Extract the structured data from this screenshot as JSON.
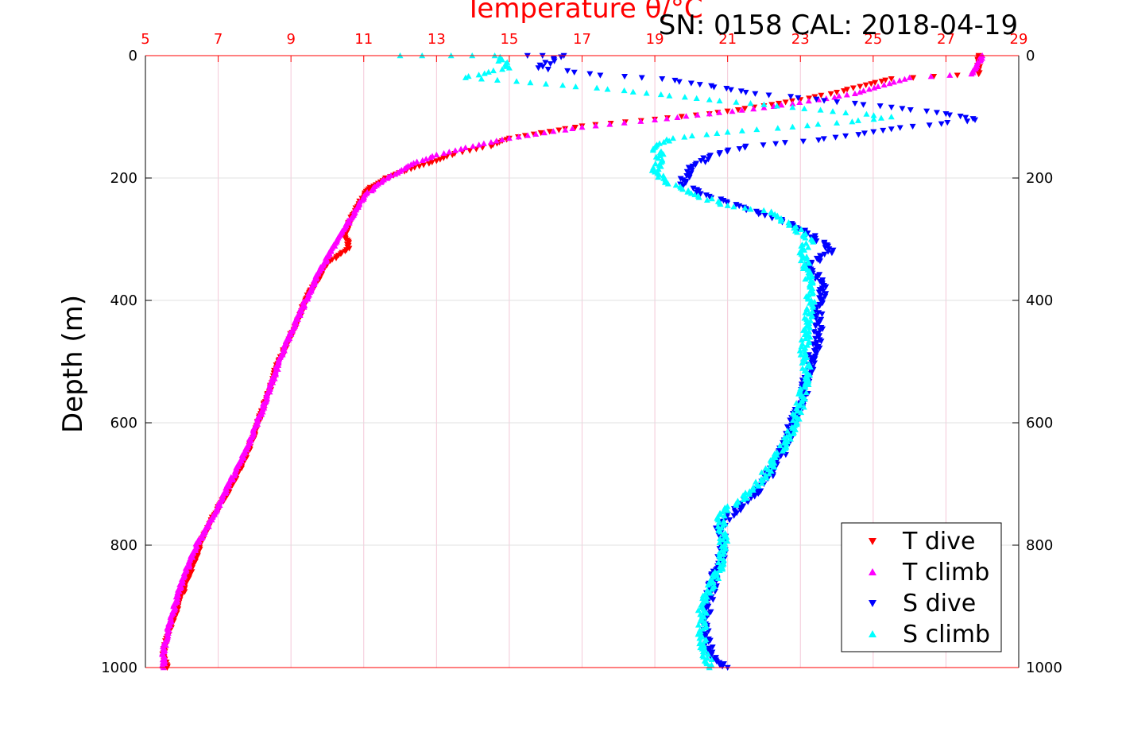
{
  "chart_data": {
    "type": "scatter",
    "title": "Temperature θ/°C",
    "subtitle": "SN: 0158  CAL: 2018-04-19",
    "xlabel": "Temperature θ/°C",
    "ylabel": "Depth (m)",
    "xlim": [
      5,
      29
    ],
    "ylim": [
      0,
      1000
    ],
    "y_reversed": true,
    "x_ticks": [
      "5",
      "7",
      "9",
      "11",
      "13",
      "15",
      "17",
      "19",
      "21",
      "23",
      "25",
      "27",
      "29"
    ],
    "y_ticks": [
      "0",
      "200",
      "400",
      "600",
      "800",
      "1000"
    ],
    "grid": true,
    "legend_position": "bottom-right",
    "colors": {
      "axis_top": "#ff0000",
      "grid": "#e0e0e0",
      "t_dive": "#ff0000",
      "t_climb": "#ff00ff",
      "s_dive": "#0000ff",
      "s_climb": "#00ffff"
    },
    "series": [
      {
        "name": "T dive",
        "marker": "triangle-down",
        "color": "#ff0000",
        "points": [
          [
            27.9,
            0
          ],
          [
            27.9,
            10
          ],
          [
            27.9,
            20
          ],
          [
            27.9,
            30
          ],
          [
            25.5,
            38
          ],
          [
            24.8,
            48
          ],
          [
            24.0,
            60
          ],
          [
            23.0,
            72
          ],
          [
            22.0,
            82
          ],
          [
            20.5,
            95
          ],
          [
            19.0,
            104
          ],
          [
            17.0,
            115
          ],
          [
            15.0,
            135
          ],
          [
            14.5,
            148
          ],
          [
            13.5,
            160
          ],
          [
            13.0,
            172
          ],
          [
            12.3,
            185
          ],
          [
            11.6,
            200
          ],
          [
            11.1,
            220
          ],
          [
            10.9,
            240
          ],
          [
            10.7,
            260
          ],
          [
            10.5,
            290
          ],
          [
            10.6,
            315
          ],
          [
            10.0,
            340
          ],
          [
            9.7,
            370
          ],
          [
            9.4,
            400
          ],
          [
            9.2,
            430
          ],
          [
            8.9,
            470
          ],
          [
            8.6,
            510
          ],
          [
            8.4,
            550
          ],
          [
            8.1,
            600
          ],
          [
            7.8,
            650
          ],
          [
            7.4,
            700
          ],
          [
            6.9,
            750
          ],
          [
            6.5,
            800
          ],
          [
            6.2,
            850
          ],
          [
            5.9,
            900
          ],
          [
            5.6,
            950
          ],
          [
            5.5,
            980
          ],
          [
            5.6,
            1000
          ]
        ]
      },
      {
        "name": "T climb",
        "marker": "triangle-up",
        "color": "#ff00ff",
        "points": [
          [
            28.0,
            0
          ],
          [
            27.7,
            30
          ],
          [
            26.0,
            36
          ],
          [
            25.3,
            48
          ],
          [
            24.5,
            62
          ],
          [
            23.5,
            72
          ],
          [
            22.0,
            85
          ],
          [
            20.5,
            95
          ],
          [
            19.0,
            105
          ],
          [
            17.0,
            117
          ],
          [
            15.0,
            135
          ],
          [
            14.0,
            148
          ],
          [
            13.0,
            162
          ],
          [
            12.3,
            178
          ],
          [
            11.5,
            205
          ],
          [
            11.0,
            230
          ],
          [
            10.8,
            250
          ],
          [
            10.5,
            280
          ],
          [
            10.1,
            320
          ],
          [
            9.8,
            350
          ],
          [
            9.4,
            400
          ],
          [
            9.1,
            440
          ],
          [
            8.8,
            480
          ],
          [
            8.5,
            530
          ],
          [
            8.2,
            580
          ],
          [
            7.8,
            640
          ],
          [
            7.3,
            700
          ],
          [
            6.9,
            750
          ],
          [
            6.4,
            800
          ],
          [
            6.0,
            860
          ],
          [
            5.7,
            920
          ],
          [
            5.5,
            970
          ],
          [
            5.5,
            1000
          ]
        ]
      },
      {
        "name": "S dive",
        "marker": "triangle-down",
        "color": "#0000ff",
        "points": [
          [
            15.5,
            0
          ],
          [
            16.5,
            0
          ],
          [
            15.8,
            20
          ],
          [
            17.5,
            32
          ],
          [
            19.2,
            38
          ],
          [
            20.0,
            45
          ],
          [
            21.5,
            60
          ],
          [
            24.5,
            78
          ],
          [
            27.0,
            95
          ],
          [
            27.8,
            105
          ],
          [
            25.5,
            120
          ],
          [
            23.5,
            138
          ],
          [
            21.5,
            148
          ],
          [
            20.5,
            165
          ],
          [
            20.0,
            185
          ],
          [
            19.7,
            210
          ],
          [
            20.5,
            230
          ],
          [
            21.5,
            250
          ],
          [
            22.5,
            270
          ],
          [
            23.2,
            290
          ],
          [
            23.9,
            318
          ],
          [
            23.3,
            340
          ],
          [
            23.6,
            380
          ],
          [
            23.5,
            420
          ],
          [
            23.5,
            460
          ],
          [
            23.3,
            500
          ],
          [
            23.1,
            550
          ],
          [
            22.8,
            600
          ],
          [
            22.5,
            650
          ],
          [
            22.0,
            700
          ],
          [
            21.2,
            745
          ],
          [
            20.8,
            770
          ],
          [
            20.9,
            810
          ],
          [
            20.6,
            860
          ],
          [
            20.4,
            920
          ],
          [
            20.4,
            960
          ],
          [
            20.7,
            990
          ],
          [
            21.0,
            1000
          ]
        ]
      },
      {
        "name": "S climb",
        "marker": "triangle-up",
        "color": "#00ffff",
        "points": [
          [
            12.0,
            0
          ],
          [
            13.4,
            0
          ],
          [
            14.6,
            0
          ],
          [
            15.0,
            20
          ],
          [
            13.8,
            36
          ],
          [
            15.2,
            42
          ],
          [
            17.7,
            55
          ],
          [
            20.5,
            72
          ],
          [
            22.0,
            80
          ],
          [
            25.5,
            100
          ],
          [
            24.0,
            110
          ],
          [
            21.0,
            125
          ],
          [
            19.5,
            135
          ],
          [
            19.0,
            150
          ],
          [
            19.2,
            170
          ],
          [
            19.0,
            190
          ],
          [
            19.3,
            205
          ],
          [
            20.0,
            225
          ],
          [
            21.0,
            245
          ],
          [
            22.2,
            255
          ],
          [
            22.7,
            275
          ],
          [
            23.3,
            300
          ],
          [
            23.0,
            320
          ],
          [
            23.2,
            350
          ],
          [
            23.3,
            400
          ],
          [
            23.2,
            440
          ],
          [
            23.1,
            480
          ],
          [
            23.2,
            520
          ],
          [
            23.0,
            570
          ],
          [
            22.7,
            620
          ],
          [
            22.2,
            670
          ],
          [
            21.7,
            710
          ],
          [
            20.8,
            750
          ],
          [
            20.9,
            800
          ],
          [
            20.7,
            850
          ],
          [
            20.3,
            900
          ],
          [
            20.3,
            950
          ],
          [
            20.5,
            1000
          ]
        ]
      }
    ]
  }
}
